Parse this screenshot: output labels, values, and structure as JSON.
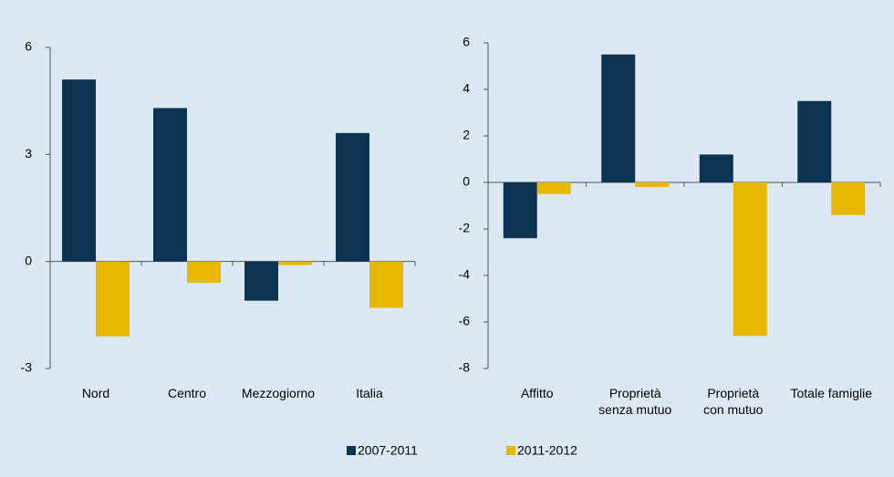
{
  "chart_data": [
    {
      "type": "bar",
      "categories": [
        "Nord",
        "Centro",
        "Mezzogiorno",
        "Italia"
      ],
      "series": [
        {
          "name": "2007-2011",
          "color": "#0c3450",
          "values": [
            5.1,
            4.3,
            -1.1,
            3.6
          ]
        },
        {
          "name": "2011-2012",
          "color": "#e8b800",
          "values": [
            -2.1,
            -0.6,
            -0.1,
            -1.3
          ]
        }
      ],
      "ylim": [
        -3,
        6
      ],
      "yticks": [
        -3,
        0,
        3,
        6
      ]
    },
    {
      "type": "bar",
      "categories": [
        "Affitto",
        "Proprietà\nsenza mutuo",
        "Proprietà\ncon mutuo",
        "Totale famiglie"
      ],
      "series": [
        {
          "color": "#0c3450",
          "values": [
            -2.4,
            5.5,
            1.2,
            3.5
          ]
        },
        {
          "color": "#e8b800",
          "values": [
            -0.5,
            -0.2,
            -6.6,
            -1.4
          ]
        }
      ],
      "ylim": [
        -8,
        6
      ],
      "yticks": [
        -8,
        -6,
        -4,
        -2,
        0,
        2,
        4,
        6
      ]
    }
  ]
}
